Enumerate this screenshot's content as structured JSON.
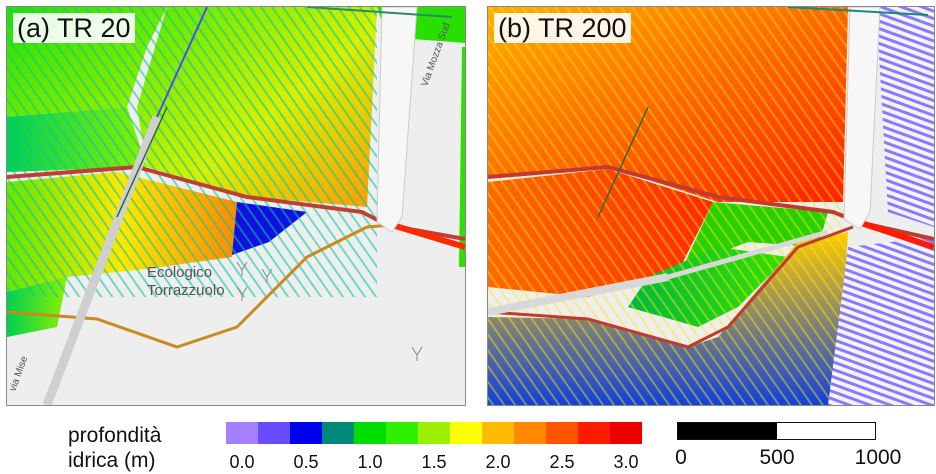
{
  "panels": [
    {
      "label": "(a) TR 20",
      "map_labels": [
        "Ecologico",
        "Torrazzuolo",
        "Via Mozza Sud",
        "via Mise"
      ]
    },
    {
      "label": "(b) TR 200"
    }
  ],
  "legend": {
    "title_line1": "profondità",
    "title_line2": "idrica (m)",
    "colors": [
      "#a480ff",
      "#6a4cff",
      "#0000ee",
      "#008878",
      "#00dd00",
      "#2ef000",
      "#9cf000",
      "#ffff00",
      "#ffbb00",
      "#ff8800",
      "#ff5500",
      "#ff1a00",
      "#ee0000"
    ],
    "ticks": [
      "0.0",
      "0.5",
      "1.0",
      "1.5",
      "2.0",
      "2.5",
      "3.0"
    ]
  },
  "scale_bar": {
    "labels": [
      "0",
      "500",
      "1000"
    ]
  }
}
